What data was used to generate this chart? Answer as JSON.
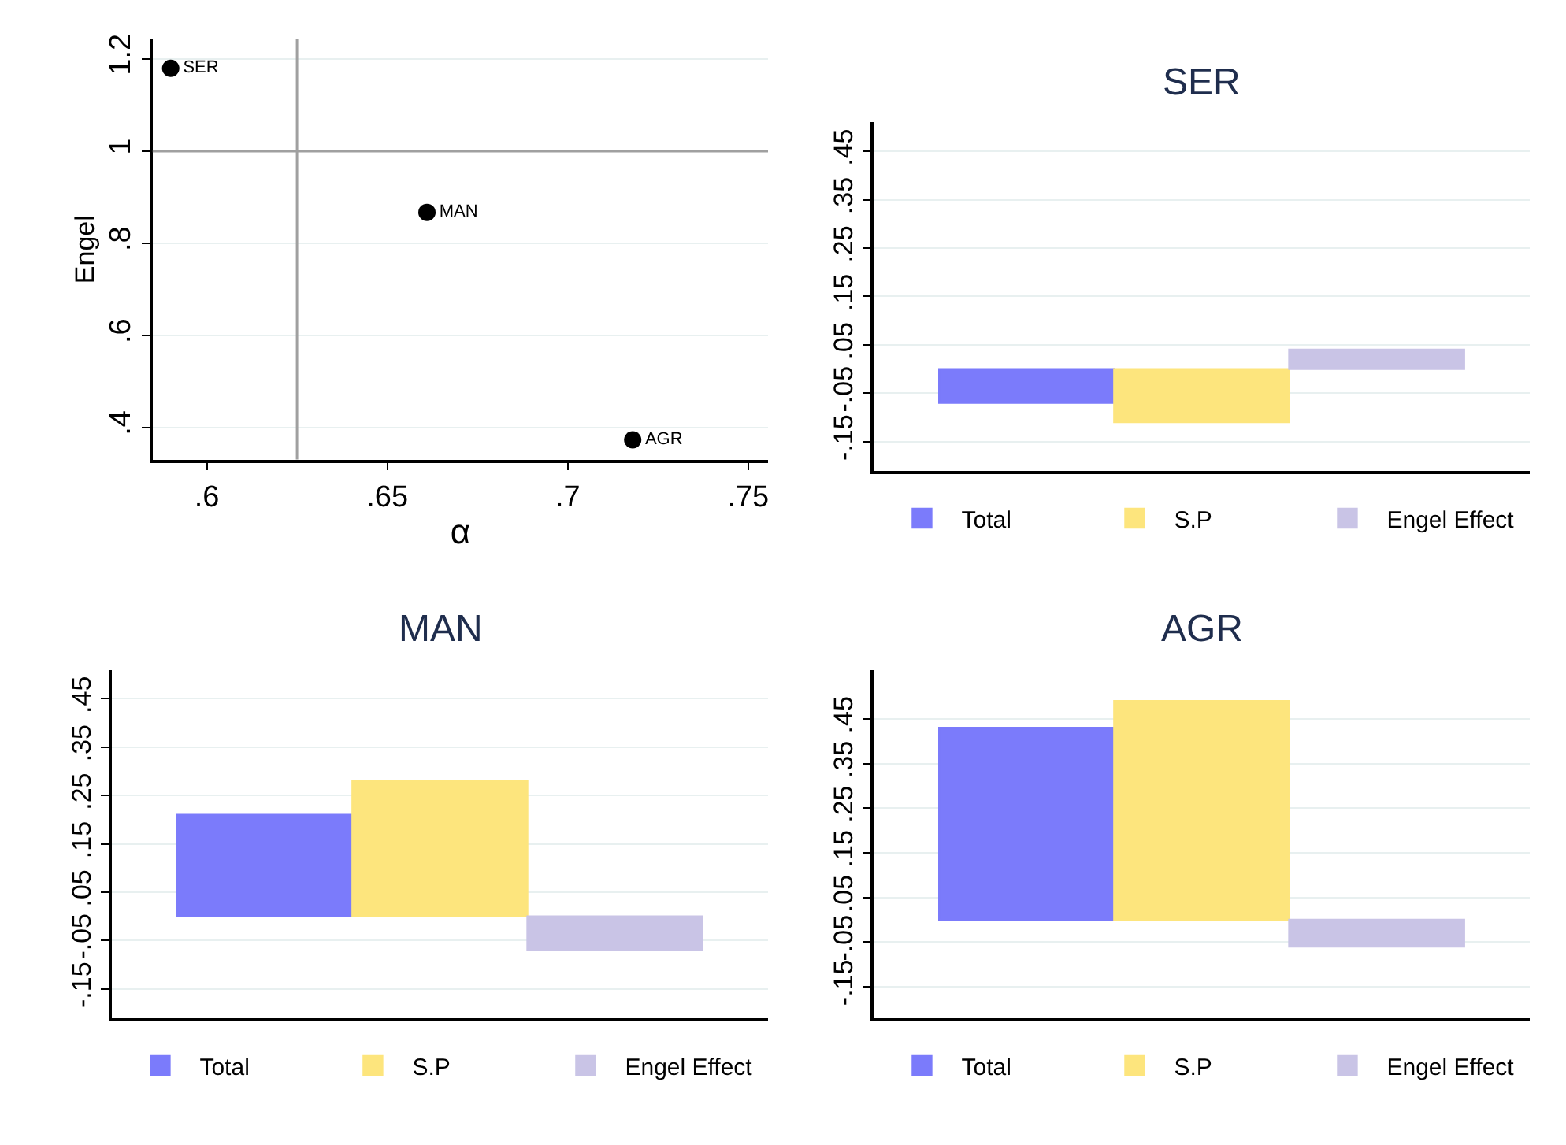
{
  "chart_data": [
    {
      "type": "scatter",
      "xlabel": "α",
      "ylabel": "Engel",
      "xlim": [
        0.585,
        0.7555
      ],
      "ylim": [
        0.33,
        1.243
      ],
      "xticks": [
        {
          "value": 0.6,
          "label": ".6"
        },
        {
          "value": 0.65,
          "label": ".65"
        },
        {
          "value": 0.7,
          "label": ".7"
        },
        {
          "value": 0.75,
          "label": ".75"
        }
      ],
      "yticks": [
        {
          "value": 0.4,
          "label": ".4"
        },
        {
          "value": 0.6,
          "label": ".6"
        },
        {
          "value": 0.8,
          "label": ".8"
        },
        1,
        1.2
      ],
      "grid": "y",
      "marker": "circle",
      "legend": false,
      "series": [
        {
          "name": "SER",
          "color": "#000000",
          "x": [
            0.59
          ],
          "values": [
            1.18
          ]
        },
        {
          "name": "MAN",
          "color": "#000000",
          "x": [
            0.661
          ],
          "values": [
            0.867
          ]
        },
        {
          "name": "AGR",
          "color": "#000000",
          "x": [
            0.718
          ],
          "values": [
            0.373
          ]
        }
      ],
      "ref_lines": [
        {
          "axis": "x",
          "value": 0.625,
          "color": "#a0a0a0"
        },
        {
          "axis": "y",
          "value": 1,
          "color": "#a0a0a0"
        }
      ]
    },
    {
      "type": "bar",
      "title": "SER",
      "categories": [
        null
      ],
      "ylim": [
        -0.21,
        0.51
      ],
      "yticks": [
        {
          "value": -0.15,
          "label": "-.15"
        },
        {
          "value": -0.05,
          "label": "-.05"
        },
        {
          "value": 0.05,
          "label": ".05"
        },
        {
          "value": 0.15,
          "label": ".15"
        },
        {
          "value": 0.25,
          "label": ".25"
        },
        {
          "value": 0.35,
          "label": ".35"
        },
        {
          "value": 0.45,
          "label": ".45"
        }
      ],
      "grid": "y",
      "legend": "bottom",
      "tick_labels": "y",
      "series": [
        {
          "name": "Total",
          "color": "#7b7bfb",
          "values": [
            -0.07
          ]
        },
        {
          "name": "S.P",
          "color": "#fde57d",
          "values": [
            -0.11
          ]
        },
        {
          "name": "Engel Effect",
          "color": "#c9c4e6",
          "values": [
            0.04
          ]
        }
      ]
    },
    {
      "type": "bar",
      "title": "MAN",
      "categories": [
        null
      ],
      "ylim": [
        -0.21,
        0.51
      ],
      "yticks": [
        {
          "value": -0.15,
          "label": "-.15"
        },
        {
          "value": -0.05,
          "label": "-.05"
        },
        {
          "value": 0.05,
          "label": ".05"
        },
        {
          "value": 0.15,
          "label": ".15"
        },
        {
          "value": 0.25,
          "label": ".25"
        },
        {
          "value": 0.35,
          "label": ".35"
        },
        {
          "value": 0.45,
          "label": ".45"
        }
      ],
      "grid": "y",
      "legend": "bottom",
      "tick_labels": "y",
      "series": [
        {
          "name": "Total",
          "color": "#7b7bfb",
          "values": [
            0.21
          ]
        },
        {
          "name": "S.P",
          "color": "#fde57d",
          "values": [
            0.28
          ]
        },
        {
          "name": "Engel Effect",
          "color": "#c9c4e6",
          "values": [
            -0.07
          ]
        }
      ]
    },
    {
      "type": "bar",
      "title": "AGR",
      "categories": [
        null
      ],
      "ylim": [
        -0.22,
        0.56
      ],
      "yticks": [
        {
          "value": -0.15,
          "label": "-.15"
        },
        {
          "value": -0.05,
          "label": "-.05"
        },
        {
          "value": 0.05,
          "label": ".05"
        },
        {
          "value": 0.15,
          "label": ".15"
        },
        {
          "value": 0.25,
          "label": ".25"
        },
        {
          "value": 0.35,
          "label": ".35"
        },
        {
          "value": 0.45,
          "label": ".45"
        }
      ],
      "grid": "y",
      "legend": "bottom",
      "tick_labels": "y",
      "series": [
        {
          "name": "Total",
          "color": "#7b7bfb",
          "values": [
            0.43
          ]
        },
        {
          "name": "S.P",
          "color": "#fde57d",
          "values": [
            0.49
          ]
        },
        {
          "name": "Engel Effect",
          "color": "#c9c4e6",
          "values": [
            -0.06
          ]
        }
      ]
    }
  ]
}
